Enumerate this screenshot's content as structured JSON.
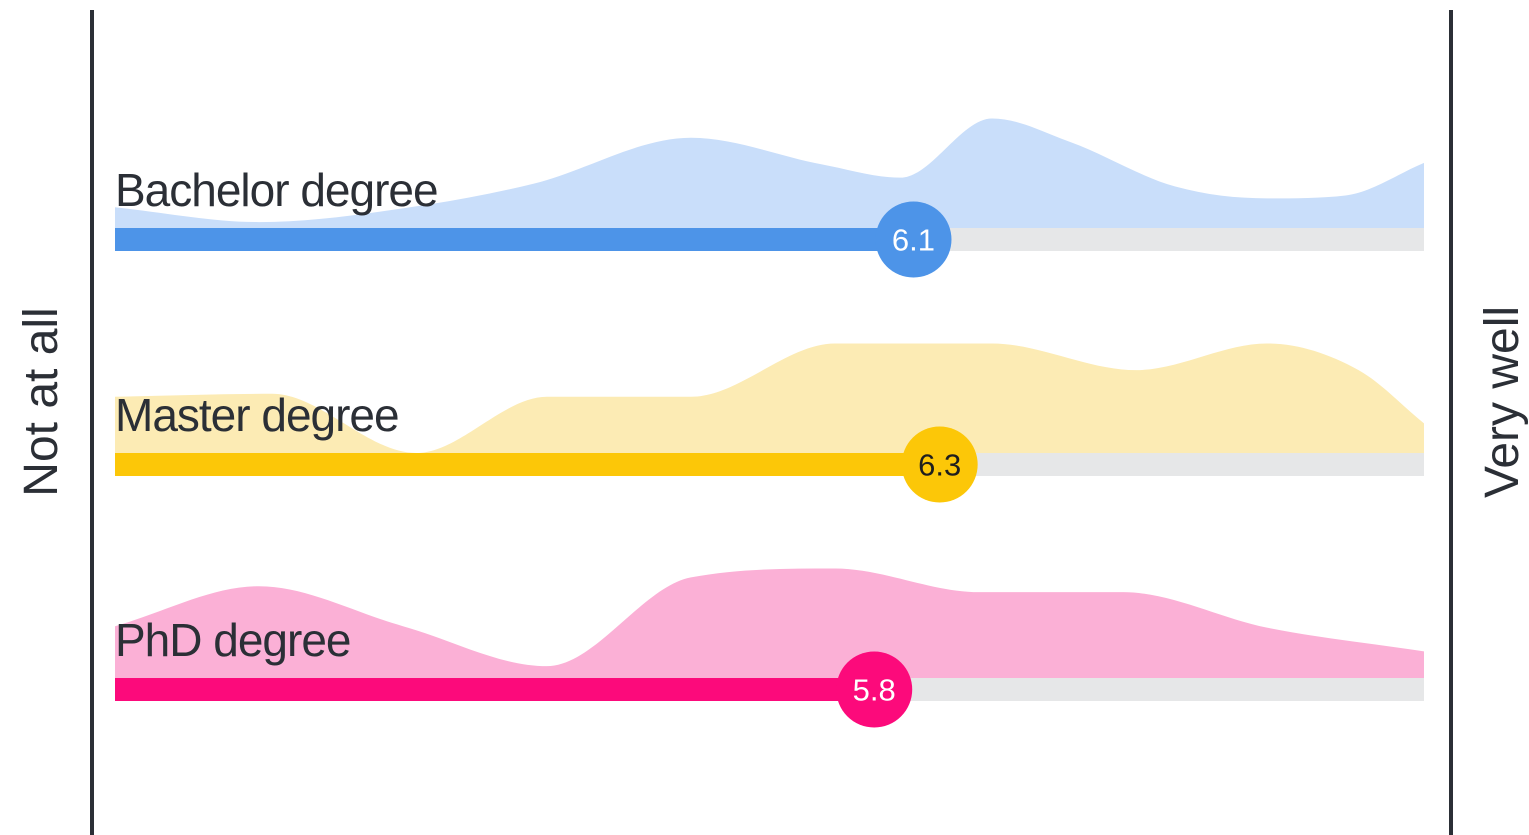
{
  "chart_data": {
    "type": "area",
    "left_label": "Not at all",
    "right_label": "Very well",
    "scale": {
      "min": 0,
      "max": 10
    },
    "track_color": "#e6e7e8",
    "axis_color": "#2b2f36",
    "series": [
      {
        "name": "Bachelor degree",
        "mean": 6.1,
        "mean_label": "6.1",
        "bar_color": "#4d94e8",
        "area_color": "#c9defa",
        "marker_text_color": "#ffffff",
        "distribution": {
          "x": [
            0,
            1.1,
            2.4,
            3.2,
            4.4,
            5.4,
            6.0,
            6.7,
            7.3,
            8.1,
            8.8,
            9.4,
            10
          ],
          "y": [
            0.14,
            0.04,
            0.16,
            0.3,
            0.61,
            0.43,
            0.34,
            0.74,
            0.58,
            0.28,
            0.2,
            0.22,
            0.44
          ]
        }
      },
      {
        "name": "Master degree",
        "mean": 6.3,
        "mean_label": "6.3",
        "bar_color": "#fcc708",
        "area_color": "#fcebb4",
        "marker_text_color": "#1e1e1e",
        "distribution": {
          "x": [
            0,
            1.2,
            2.3,
            3.3,
            4.4,
            5.5,
            6.7,
            7.8,
            8.8,
            9.5,
            10
          ],
          "y": [
            0.38,
            0.4,
            0.0,
            0.38,
            0.38,
            0.74,
            0.74,
            0.56,
            0.74,
            0.56,
            0.2
          ]
        }
      },
      {
        "name": "PhD degree",
        "mean": 5.8,
        "mean_label": "5.8",
        "bar_color": "#fc0a7b",
        "area_color": "#fbb0d6",
        "marker_text_color": "#ffffff",
        "distribution": {
          "x": [
            0,
            1.1,
            2.2,
            3.3,
            4.4,
            5.5,
            6.6,
            7.7,
            8.8,
            10
          ],
          "y": [
            0.35,
            0.62,
            0.35,
            0.08,
            0.68,
            0.74,
            0.58,
            0.58,
            0.34,
            0.18
          ]
        }
      }
    ]
  }
}
